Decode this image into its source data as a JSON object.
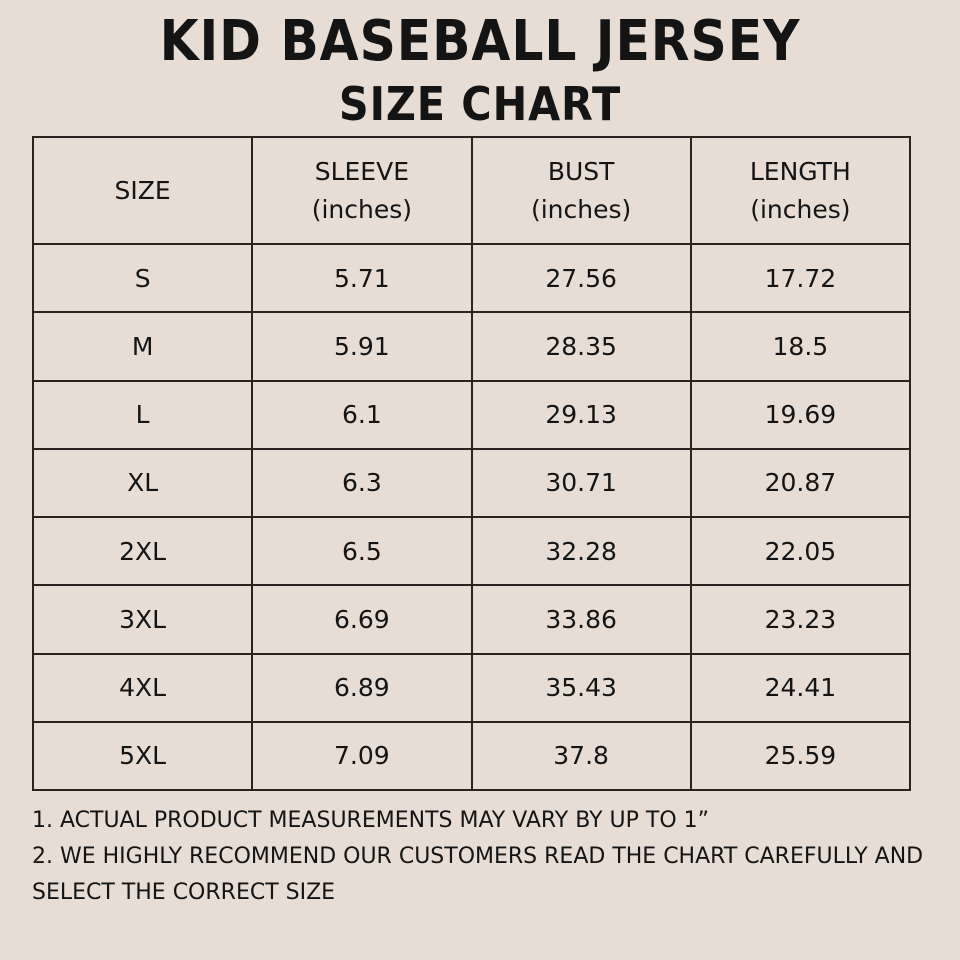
{
  "title": "KID BASEBALL JERSEY",
  "subtitle": "SIZE CHART",
  "table": {
    "headers": [
      {
        "label": "SIZE",
        "unit": ""
      },
      {
        "label": "SLEEVE",
        "unit": "(inches)"
      },
      {
        "label": "BUST",
        "unit": "(inches)"
      },
      {
        "label": "LENGTH",
        "unit": "(inches)"
      }
    ],
    "rows": [
      [
        "S",
        "5.71",
        "27.56",
        "17.72"
      ],
      [
        "M",
        "5.91",
        "28.35",
        "18.5"
      ],
      [
        "L",
        "6.1",
        "29.13",
        "19.69"
      ],
      [
        "XL",
        "6.3",
        "30.71",
        "20.87"
      ],
      [
        "2XL",
        "6.5",
        "32.28",
        "22.05"
      ],
      [
        "3XL",
        "6.69",
        "33.86",
        "23.23"
      ],
      [
        "4XL",
        "6.89",
        "35.43",
        "24.41"
      ],
      [
        "5XL",
        "7.09",
        "37.8",
        "25.59"
      ]
    ]
  },
  "notes": [
    "1. ACTUAL PRODUCT MEASUREMENTS MAY VARY BY UP TO 1”",
    "2. WE HIGHLY RECOMMEND OUR CUSTOMERS READ THE CHART CAREFULLY AND SELECT THE CORRECT SIZE"
  ],
  "colors": {
    "background": "#e8ddd4",
    "text": "#141414",
    "border": "#2a2320"
  }
}
